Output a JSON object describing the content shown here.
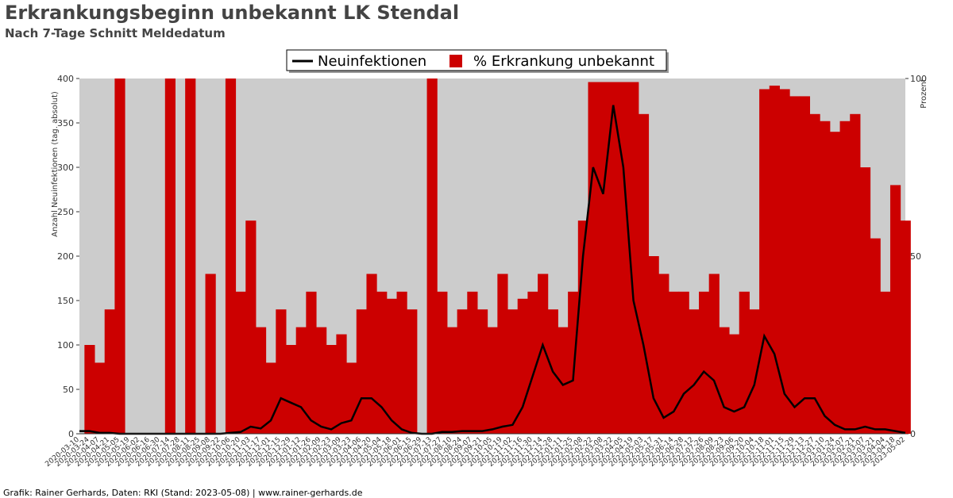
{
  "chart_data": {
    "type": "combo",
    "title": "Erkrankungsbeginn unbekannt LK Stendal",
    "subtitle": "Nach 7-Tage Schnitt Meldedatum",
    "ylabel": "Anzahl Neuinfektionen (tag. absolut)",
    "y2label": "Prozent",
    "footer": "Grafik: Rainer Gerhards, Daten: RKI (Stand: 2023-05-08) | www.rainer-gerhards.de",
    "categories": [
      "2020-03-10",
      "2020-03-24",
      "2020-04-07",
      "2020-04-21",
      "2020-05-05",
      "2020-05-19",
      "2020-06-02",
      "2020-06-16",
      "2020-06-30",
      "2020-07-14",
      "2020-07-28",
      "2020-08-11",
      "2020-08-25",
      "2020-09-08",
      "2020-09-22",
      "2020-10-06",
      "2020-10-20",
      "2020-11-03",
      "2020-11-17",
      "2020-12-01",
      "2020-12-15",
      "2020-12-29",
      "2021-01-12",
      "2021-01-26",
      "2021-02-09",
      "2021-02-23",
      "2021-03-09",
      "2021-03-23",
      "2021-04-06",
      "2021-04-20",
      "2021-05-04",
      "2021-05-18",
      "2021-06-01",
      "2021-06-15",
      "2021-06-29",
      "2021-07-13",
      "2021-07-27",
      "2021-08-10",
      "2021-08-24",
      "2021-09-07",
      "2021-09-21",
      "2021-10-05",
      "2021-10-19",
      "2021-11-02",
      "2021-11-16",
      "2021-11-30",
      "2021-12-14",
      "2021-12-28",
      "2022-01-11",
      "2022-01-25",
      "2022-02-08",
      "2022-02-22",
      "2022-03-08",
      "2022-03-22",
      "2022-04-05",
      "2022-04-19",
      "2022-05-03",
      "2022-05-17",
      "2022-05-31",
      "2022-06-14",
      "2022-06-28",
      "2022-07-12",
      "2022-07-26",
      "2022-08-09",
      "2022-08-23",
      "2022-09-06",
      "2022-09-20",
      "2022-10-04",
      "2022-10-18",
      "2022-11-01",
      "2022-11-15",
      "2022-11-29",
      "2022-12-13",
      "2022-12-27",
      "2023-01-10",
      "2023-01-24",
      "2023-02-07",
      "2023-02-21",
      "2023-03-07",
      "2023-03-21",
      "2023-04-04",
      "2023-04-18",
      "2023-05-02"
    ],
    "series": [
      {
        "name": "Neuinfektionen",
        "type": "line",
        "axis": "y",
        "color": "#000000",
        "values": [
          3,
          3,
          1,
          1,
          0,
          0,
          0,
          0,
          0,
          0,
          0,
          0,
          0,
          0,
          0,
          1,
          2,
          8,
          6,
          15,
          40,
          35,
          30,
          15,
          8,
          5,
          12,
          15,
          40,
          40,
          30,
          15,
          5,
          1,
          0,
          0,
          2,
          2,
          3,
          3,
          3,
          5,
          8,
          10,
          30,
          65,
          100,
          70,
          55,
          60,
          200,
          300,
          270,
          370,
          300,
          150,
          100,
          40,
          18,
          25,
          45,
          55,
          70,
          60,
          30,
          25,
          30,
          55,
          110,
          90,
          45,
          30,
          40,
          40,
          20,
          10,
          5,
          5,
          8,
          5,
          5,
          3,
          1
        ]
      },
      {
        "name": "% Erkrankung unbekannt",
        "type": "bar",
        "axis": "y2",
        "color": "#cc0000",
        "values": [
          0,
          25,
          20,
          35,
          100,
          0,
          0,
          0,
          0,
          100,
          0,
          100,
          0,
          45,
          0,
          100,
          40,
          60,
          30,
          20,
          35,
          25,
          30,
          40,
          30,
          25,
          28,
          20,
          35,
          45,
          40,
          38,
          40,
          35,
          0,
          100,
          40,
          30,
          35,
          40,
          35,
          30,
          45,
          35,
          38,
          40,
          45,
          35,
          30,
          40,
          60,
          99,
          99,
          99,
          99,
          99,
          90,
          50,
          45,
          40,
          40,
          35,
          40,
          45,
          30,
          28,
          40,
          35,
          97,
          98,
          97,
          95,
          95,
          90,
          88,
          85,
          88,
          90,
          75,
          55,
          40,
          70,
          60
        ]
      }
    ],
    "ylim": [
      0,
      400
    ],
    "yticks": [
      0,
      50,
      100,
      150,
      200,
      250,
      300,
      350,
      400
    ],
    "y2lim": [
      0,
      100
    ],
    "y2ticks": [
      0,
      50,
      100
    ],
    "legend": "top"
  }
}
